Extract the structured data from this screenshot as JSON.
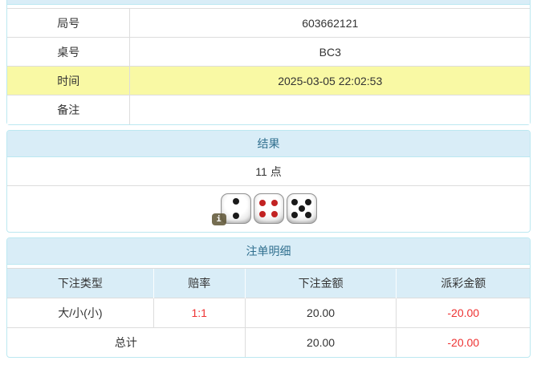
{
  "colors": {
    "panel_border": "#bce8f1",
    "panel_heading_bg": "#d9edf7",
    "heading_text": "#31708f",
    "highlight_row_bg": "#f9f9a4",
    "cell_border": "#dddddd",
    "body_text": "#333333",
    "negative_text": "#ee3333",
    "red_pip": "#c22222",
    "black_pip": "#1a1a1a"
  },
  "info_table": {
    "rows": [
      {
        "label": "局号",
        "value": "603662121"
      },
      {
        "label": "桌号",
        "value": "BC3"
      },
      {
        "label": "时间",
        "value": "2025-03-05 22:02:53"
      },
      {
        "label": "备注",
        "value": ""
      }
    ]
  },
  "result": {
    "title": "结果",
    "points": "11 点",
    "dice": [
      {
        "value": 2,
        "pip_color": "#1a1a1a"
      },
      {
        "value": 4,
        "pip_color": "#c22222"
      },
      {
        "value": 5,
        "pip_color": "#1a1a1a"
      }
    ],
    "info_icon": "i"
  },
  "bets": {
    "title": "注单明细",
    "columns": [
      "下注类型",
      "赔率",
      "下注金额",
      "派彩金额"
    ],
    "rows": [
      {
        "type": "大/小(小)",
        "odds": "1:1",
        "amount": "20.00",
        "payout": "-20.00"
      }
    ],
    "total": {
      "label": "总计",
      "amount": "20.00",
      "payout": "-20.00"
    }
  }
}
